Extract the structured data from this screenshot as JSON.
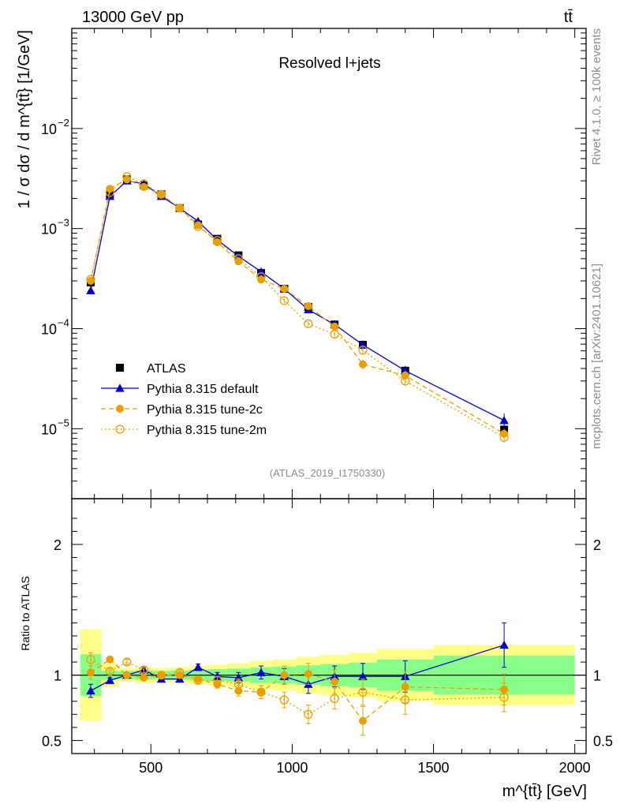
{
  "chart_data": {
    "type": "line",
    "header_left": "13000 GeV pp",
    "header_right": "tt̄",
    "title": "Resolved l+jets",
    "analysis_id": "(ATLAS_2019_I1750330)",
    "side_label_top": "Rivet 4.1.0, ≥ 100k events",
    "side_label_bottom": "mcplots.cern.ch [arXiv:2401.10621]",
    "ylabel": "1 / σ dσ / d m^{tt̄} [1/GeV]",
    "xlabel": "m^{tt̄} [GeV]",
    "ratio_ylabel": "Ratio to ATLAS",
    "xlim": [
      220,
      2040
    ],
    "ylim_log": [
      2e-06,
      0.1
    ],
    "ratio_ylim": [
      0.4,
      2.35
    ],
    "x_ticks": [
      500,
      1000,
      1500,
      2000
    ],
    "x_tick_labels": [
      "500",
      "1000",
      "1500",
      "2000"
    ],
    "y_ticks": [
      1e-05,
      0.0001,
      0.001,
      0.01
    ],
    "y_tick_labels": [
      {
        "base": "10",
        "exp": "−5"
      },
      {
        "base": "10",
        "exp": "−4"
      },
      {
        "base": "10",
        "exp": "−3"
      },
      {
        "base": "10",
        "exp": "−2"
      }
    ],
    "ratio_ticks": [
      0.5,
      1,
      2
    ],
    "ratio_tick_labels": [
      "0.5",
      "1",
      "2"
    ],
    "bins": [
      [
        250,
        325
      ],
      [
        325,
        385
      ],
      [
        385,
        445
      ],
      [
        445,
        505
      ],
      [
        505,
        570
      ],
      [
        570,
        635
      ],
      [
        635,
        700
      ],
      [
        700,
        770
      ],
      [
        770,
        850
      ],
      [
        850,
        930
      ],
      [
        930,
        1015
      ],
      [
        1015,
        1100
      ],
      [
        1100,
        1200
      ],
      [
        1200,
        1300
      ],
      [
        1300,
        1500
      ],
      [
        1500,
        2000
      ]
    ],
    "x": [
      287,
      355,
      415,
      475,
      537,
      602,
      667,
      735,
      810,
      890,
      972,
      1057,
      1150,
      1250,
      1400,
      1750
    ],
    "series": [
      {
        "name": "ATLAS",
        "marker": "square",
        "color": "#000000",
        "values": [
          0.00029,
          0.0022,
          0.0031,
          0.0027,
          0.0022,
          0.0016,
          0.0011,
          0.00079,
          0.00054,
          0.00036,
          0.00025,
          0.000165,
          0.00011,
          6.9e-05,
          3.8e-05,
          9.8e-06
        ],
        "ratio_band_inner": [
          0.16,
          0.035,
          0.03,
          0.035,
          0.03,
          0.035,
          0.04,
          0.045,
          0.05,
          0.06,
          0.065,
          0.075,
          0.085,
          0.095,
          0.12,
          0.15
        ],
        "ratio_band_outer": [
          0.35,
          0.09,
          0.05,
          0.06,
          0.055,
          0.06,
          0.07,
          0.08,
          0.09,
          0.11,
          0.12,
          0.14,
          0.155,
          0.17,
          0.2,
          0.23
        ]
      },
      {
        "name": "Pythia 8.315 default",
        "marker": "triangle",
        "line": "solid",
        "color": "#0000cc",
        "values": [
          0.00024,
          0.0021,
          0.003,
          0.0028,
          0.0021,
          0.0016,
          0.00118,
          0.00077,
          0.00053,
          0.00037,
          0.00025,
          0.000155,
          0.00011,
          6.9e-05,
          3.8e-05,
          1.21e-05
        ],
        "ratio": [
          0.88,
          0.96,
          1.0,
          1.04,
          0.97,
          0.97,
          1.06,
          0.99,
          0.98,
          1.02,
          0.99,
          0.93,
          0.99,
          0.99,
          0.99,
          1.23
        ],
        "ratio_err": [
          0.05,
          0.02,
          0.02,
          0.02,
          0.02,
          0.02,
          0.025,
          0.03,
          0.04,
          0.05,
          0.06,
          0.07,
          0.08,
          0.1,
          0.12,
          0.17
        ]
      },
      {
        "name": "Pythia 8.315 tune-2c",
        "marker": "circle",
        "line": "dashed",
        "color": "#e8a000",
        "values": [
          0.0003,
          0.0025,
          0.0031,
          0.0026,
          0.0022,
          0.0016,
          0.00108,
          0.00073,
          0.00047,
          0.00031,
          0.00025,
          0.000168,
          0.000105,
          4.4e-05,
          3.4e-05,
          8.9e-06
        ],
        "ratio": [
          1.02,
          1.12,
          1.0,
          0.98,
          1.0,
          1.0,
          0.97,
          0.93,
          0.88,
          0.87,
          1.0,
          1.01,
          0.95,
          0.65,
          0.91,
          0.89
        ],
        "ratio_err": [
          0.05,
          0.02,
          0.02,
          0.02,
          0.02,
          0.02,
          0.025,
          0.03,
          0.04,
          0.05,
          0.07,
          0.08,
          0.09,
          0.11,
          0.12,
          0.12
        ]
      },
      {
        "name": "Pythia 8.315 tune-2m",
        "marker": "open-circle",
        "line": "dotted",
        "color": "#e8a000",
        "values": [
          0.00031,
          0.0023,
          0.0033,
          0.0028,
          0.0022,
          0.0016,
          0.00105,
          0.00076,
          0.0005,
          0.00033,
          0.00019,
          0.000112,
          8.8e-05,
          6.1e-05,
          3e-05,
          8.2e-06
        ],
        "ratio": [
          1.12,
          1.03,
          1.1,
          1.04,
          1.0,
          1.02,
          0.96,
          0.96,
          0.93,
          0.87,
          0.81,
          0.7,
          0.82,
          0.87,
          0.81,
          0.83
        ],
        "ratio_err": [
          0.05,
          0.02,
          0.02,
          0.02,
          0.02,
          0.02,
          0.025,
          0.03,
          0.04,
          0.05,
          0.06,
          0.07,
          0.08,
          0.1,
          0.11,
          0.11
        ]
      }
    ],
    "colors": {
      "band_inner": "#88ff88",
      "band_outer": "#ffff88",
      "frame": "#000000",
      "muted_text": "#8c8c8c"
    }
  }
}
